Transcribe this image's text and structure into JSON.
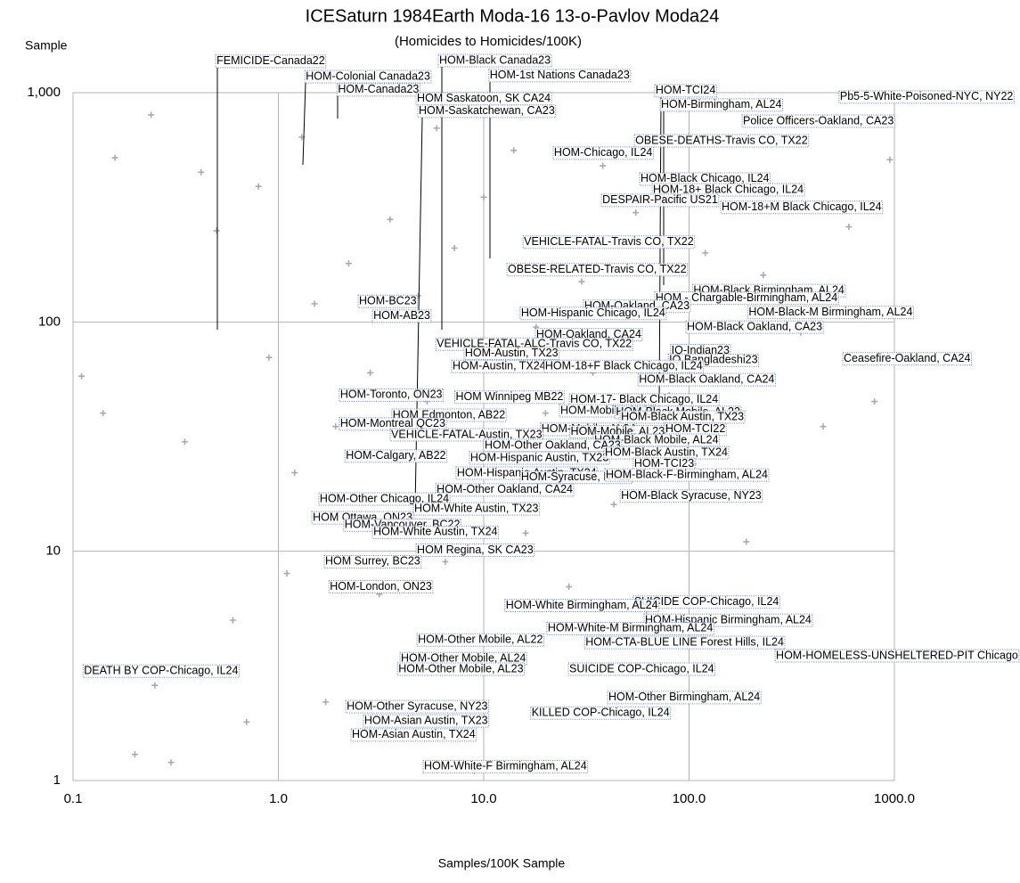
{
  "chart_data": {
    "type": "scatter",
    "title": "ICESaturn 1984Earth Moda-16 13-o-Pavlov Moda24",
    "subtitle": "(Homicides to Homicides/100K)",
    "y_label": "Sample",
    "x_label": "Samples/100K Sample",
    "xscale": "log",
    "yscale": "log",
    "xlim": [
      0.1,
      1000
    ],
    "ylim": [
      1,
      1000
    ],
    "xticks": [
      0.1,
      {
        "value": 1,
        "label": "1.0"
      },
      {
        "value": 10,
        "label": "10.0"
      },
      {
        "value": 100,
        "label": "100.0"
      },
      {
        "value": 1000,
        "label": "1000.0"
      }
    ],
    "yticks": [
      1,
      10,
      100,
      {
        "value": 1000,
        "label": "1,000"
      }
    ],
    "grid": true,
    "marker_color": "#aaaaaa",
    "label_border_color": "#5b7fb8",
    "x": [
      0.11,
      0.14,
      0.16,
      0.19,
      0.2,
      0.24,
      0.25,
      0.3,
      0.35,
      0.42,
      0.5,
      0.6,
      0.7,
      0.8,
      0.9,
      1.1,
      1.2,
      1.3,
      1.5,
      1.7,
      1.9,
      2.2,
      2.5,
      2.8,
      3.1,
      3.5,
      3.9,
      4.3,
      4.8,
      5.3,
      5.9,
      6.5,
      7.2,
      8,
      9,
      10,
      11,
      12.5,
      14,
      16,
      18,
      20,
      23,
      26,
      30,
      34,
      38,
      43,
      48,
      55,
      62,
      70,
      80,
      90,
      105,
      120,
      140,
      165,
      190,
      230,
      280,
      350,
      450,
      600,
      800,
      950
    ],
    "y": [
      58,
      40,
      520,
      2.9,
      1.3,
      800,
      2.6,
      1.2,
      30,
      450,
      250,
      5,
      1.8,
      390,
      70,
      8,
      22,
      640,
      120,
      2.2,
      35,
      180,
      14,
      60,
      6.5,
      280,
      25,
      3.2,
      130,
      45,
      700,
      9,
      210,
      18,
      1.1,
      350,
      75,
      28,
      560,
      12,
      95,
      40,
      220,
      7,
      150,
      60,
      480,
      16,
      85,
      300,
      5.5,
      120,
      48,
      850,
      24,
      200,
      70,
      400,
      11,
      160,
      620,
      90,
      35,
      260,
      45,
      510
    ],
    "annotations": [
      {
        "text": "FEMICIDE-Canada22",
        "x": 0.5,
        "y": 1370
      },
      {
        "text": "HOM-Colonial Canada23",
        "x": 1.36,
        "y": 1175
      },
      {
        "text": "HOM-Canada23",
        "x": 1.95,
        "y": 1028
      },
      {
        "text": "HOM-Black Canada23",
        "x": 6.07,
        "y": 1380
      },
      {
        "text": "HOM-1st Nations Canada23",
        "x": 10.7,
        "y": 1186
      },
      {
        "text": "HOM Saskatoon, SK CA24",
        "x": 4.73,
        "y": 940
      },
      {
        "text": "HOM-Saskatchewan, CA23",
        "x": 4.82,
        "y": 830
      },
      {
        "text": "HOM-TCI24",
        "x": 68.7,
        "y": 1019
      },
      {
        "text": "HOM-Birmingham, AL24",
        "x": 73,
        "y": 883
      },
      {
        "text": "Pb5-5-White-Poisoned-NYC, NY22",
        "x": 543,
        "y": 957
      },
      {
        "text": "Police Officers-Oakland, CA23",
        "x": 183,
        "y": 751
      },
      {
        "text": "OBESE-DEATHS-Travis CO, TX22",
        "x": 54.7,
        "y": 617
      },
      {
        "text": "HOM-Chicago, IL24",
        "x": 22,
        "y": 545
      },
      {
        "text": "HOM-Black Chicago, IL24",
        "x": 58,
        "y": 420
      },
      {
        "text": "HOM-18+ Black Chicago, IL24",
        "x": 66.7,
        "y": 377
      },
      {
        "text": "DESPAIR-Pacific US21",
        "x": 37.8,
        "y": 339
      },
      {
        "text": "HOM-18+M Black Chicago, IL24",
        "x": 144,
        "y": 316
      },
      {
        "text": "VEHICLE-FATAL-Travis CO, TX22",
        "x": 15.7,
        "y": 223
      },
      {
        "text": "OBESE-RELATED-Travis CO, TX22",
        "x": 13.1,
        "y": 169
      },
      {
        "text": "HOM-Black Birmingham, AL24",
        "x": 105,
        "y": 137
      },
      {
        "text": "HOM - Chargable-Birmingham, AL24",
        "x": 68.7,
        "y": 127
      },
      {
        "text": "HOM-Oakland, CA23",
        "x": 30.9,
        "y": 117
      },
      {
        "text": "HOM-Hispanic Chicago, IL24",
        "x": 15.2,
        "y": 109
      },
      {
        "text": "HOM-Black-M Birmingham, AL24",
        "x": 195,
        "y": 110
      },
      {
        "text": "HOM-Black Oakland, CA23",
        "x": 97.5,
        "y": 95
      },
      {
        "text": "HOM-BC23",
        "x": 2.47,
        "y": 123
      },
      {
        "text": "HOM-AB23",
        "x": 2.9,
        "y": 106
      },
      {
        "text": "HOM-Oakland, CA24",
        "x": 18,
        "y": 88
      },
      {
        "text": "VEHICLE-FATAL-ALC-Travis CO, TX22",
        "x": 5.9,
        "y": 80
      },
      {
        "text": "HOM-Austin, TX23",
        "x": 8.1,
        "y": 73
      },
      {
        "text": "IQ-Indian23",
        "x": 82,
        "y": 75
      },
      {
        "text": "IQ Bangladeshi23",
        "x": 80,
        "y": 68
      },
      {
        "text": "Ceasefire-Oakland, CA24",
        "x": 566,
        "y": 69
      },
      {
        "text": "HOM-Austin, TX24",
        "x": 7.05,
        "y": 64
      },
      {
        "text": "HOM-18+F Black Chicago, IL24",
        "x": 19.9,
        "y": 64
      },
      {
        "text": "HOM-Black Oakland, CA24",
        "x": 57,
        "y": 56
      },
      {
        "text": "HOM-Toronto, ON23",
        "x": 2.0,
        "y": 48
      },
      {
        "text": "HOM Winnipeg MB22",
        "x": 7.3,
        "y": 47
      },
      {
        "text": "HOM-17- Black Chicago, IL24",
        "x": 26.4,
        "y": 45.7
      },
      {
        "text": "HOM-Mobile, AL22",
        "x": 23.6,
        "y": 41
      },
      {
        "text": "HOM-Black Mobile, AL22",
        "x": 44,
        "y": 40.3
      },
      {
        "text": "HOM-Black Austin, TX23",
        "x": 46.6,
        "y": 38.5
      },
      {
        "text": "HOM Edmonton, AB22",
        "x": 3.6,
        "y": 39.2
      },
      {
        "text": "HOM-Montreal QC23",
        "x": 2.0,
        "y": 35.9
      },
      {
        "text": "HOM-TCI22",
        "x": 76.7,
        "y": 34
      },
      {
        "text": "HOM-Mobile, AL24",
        "x": 19.1,
        "y": 34
      },
      {
        "text": "VEHICLE-FATAL-Austin, TX23",
        "x": 3.54,
        "y": 32.2
      },
      {
        "text": "HOM-Mobile, AL23",
        "x": 26.5,
        "y": 33.2
      },
      {
        "text": "HOM-Black Mobile, AL24",
        "x": 34.5,
        "y": 30.5
      },
      {
        "text": "HOM-Other Oakland, CA23",
        "x": 10.1,
        "y": 28.9
      },
      {
        "text": "HOM-Calgary, AB22",
        "x": 2.13,
        "y": 26
      },
      {
        "text": "HOM-Hispanic Austin, TX23",
        "x": 8.6,
        "y": 25.5
      },
      {
        "text": "HOM-Black Austin, TX24",
        "x": 38.9,
        "y": 26.9
      },
      {
        "text": "HOM-TCI23",
        "x": 54,
        "y": 24
      },
      {
        "text": "HOM-Hispanic-Austin, TX24",
        "x": 7.4,
        "y": 21.9
      },
      {
        "text": "HOM-Syracuse, NY23",
        "x": 15.2,
        "y": 21
      },
      {
        "text": "HOM-Black-F-Birmingham, AL24",
        "x": 39.3,
        "y": 21.5
      },
      {
        "text": "HOM-Other Oakland, CA24",
        "x": 5.9,
        "y": 18.5
      },
      {
        "text": "HOM-Black Syracuse, NY23",
        "x": 46.6,
        "y": 17.4
      },
      {
        "text": "HOM-Other Chicago, IL24",
        "x": 1.59,
        "y": 16.9
      },
      {
        "text": "HOM-White Austin, TX23",
        "x": 4.59,
        "y": 15.3
      },
      {
        "text": "HOM Ottawa, ON23",
        "x": 1.47,
        "y": 14
      },
      {
        "text": "HOM-Vancouver, BC22",
        "x": 2.1,
        "y": 13
      },
      {
        "text": "HOM-White Austin, TX24",
        "x": 2.9,
        "y": 12.1
      },
      {
        "text": "HOM Regina, SK CA23",
        "x": 4.73,
        "y": 10.1
      },
      {
        "text": "HOM Surrey, BC23",
        "x": 1.69,
        "y": 9.0
      },
      {
        "text": "HOM-London, ON23",
        "x": 1.78,
        "y": 7.0
      },
      {
        "text": "SUICIDE COP-Chicago, IL24",
        "x": 54,
        "y": 6.0
      },
      {
        "text": "HOM-White Birmingham, AL24",
        "x": 12.8,
        "y": 5.8
      },
      {
        "text": "HOM-Hispanic Birmingham, AL24",
        "x": 61,
        "y": 5.0
      },
      {
        "text": "HOM-White-M Birmingham, AL24",
        "x": 20.5,
        "y": 4.6
      },
      {
        "text": "HOM-Other Mobile, AL22",
        "x": 4.78,
        "y": 4.1
      },
      {
        "text": "HOM-CTA-BLUE LINE Forest Hills, IL24",
        "x": 31.3,
        "y": 4.0
      },
      {
        "text": "HOM-HOMELESS-UNSHELTERED-PIT Chicago",
        "x": 265,
        "y": 3.5
      },
      {
        "text": "HOM-Other Mobile, AL24",
        "x": 3.95,
        "y": 3.4
      },
      {
        "text": "DEATH BY COP-Chicago, IL24",
        "x": 0.113,
        "y": 3.0
      },
      {
        "text": "HOM-Other Mobile, AL23",
        "x": 3.84,
        "y": 3.06
      },
      {
        "text": "SUICIDE COP-Chicago, IL24",
        "x": 26.1,
        "y": 3.06
      },
      {
        "text": "HOM-Other Birmingham, AL24",
        "x": 40.5,
        "y": 2.3
      },
      {
        "text": "HOM-Other Syracuse, NY23",
        "x": 2.15,
        "y": 2.1
      },
      {
        "text": "KILLED COP-Chicago, IL24",
        "x": 17.1,
        "y": 1.97
      },
      {
        "text": "HOM-Asian Austin, TX23",
        "x": 2.62,
        "y": 1.82
      },
      {
        "text": "HOM-Asian Austin, TX24",
        "x": 2.28,
        "y": 1.58
      },
      {
        "text": "HOM-White-F Birmingham, AL24",
        "x": 5.12,
        "y": 1.15
      }
    ]
  }
}
